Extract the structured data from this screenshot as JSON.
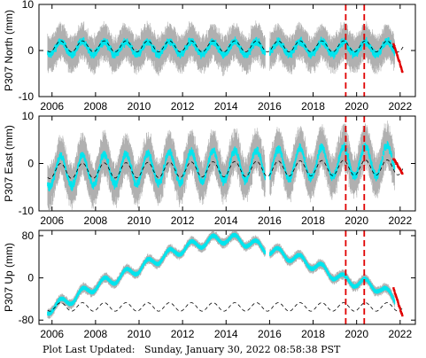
{
  "footer": {
    "label": "Plot Last Updated:",
    "timestamp": "Sunday, January 30, 2022 08:58:38 PST"
  },
  "colors": {
    "gray_error": "#b0b0b0",
    "cyan_data": "#00e5ee",
    "model_dash": "#000000",
    "event_line": "#e00000",
    "recent_points": "#e00000",
    "axes": "#000000"
  },
  "chart_data": [
    {
      "type": "scatter",
      "ylabel": "P307 North (mm)",
      "xlim": [
        2005.4,
        2022.7
      ],
      "ylim": [
        -10,
        10
      ],
      "yticks": [
        -10,
        0,
        10
      ],
      "xticks": [
        2006,
        2008,
        2010,
        2012,
        2014,
        2016,
        2018,
        2020,
        2022
      ],
      "xticklabels": [
        "2006",
        "2008",
        "2010",
        "2012",
        "2014",
        "2016",
        "2018",
        "2020",
        "2022"
      ],
      "event_lines": [
        2019.5,
        2020.35
      ],
      "gap": [
        2015.8,
        2016.0
      ],
      "series": [
        {
          "role": "daily",
          "x": [
            2005.8,
            2022.15
          ],
          "mean": 0.5,
          "trend": 0.0,
          "annual_amp": 1.4,
          "noise": 2.5,
          "spread_scale": 1.0
        },
        {
          "role": "model",
          "x": [
            2005.8,
            2022.15
          ],
          "mean": 0.9,
          "trend": 0.0,
          "annual_amp": 1.2
        },
        {
          "role": "recent",
          "x": [
            2021.7,
            2022.1
          ],
          "y": [
            1.5,
            -4.5
          ]
        }
      ]
    },
    {
      "type": "scatter",
      "ylabel": "P307 East (mm)",
      "xlim": [
        2005.4,
        2022.7
      ],
      "ylim": [
        -10,
        10
      ],
      "yticks": [
        -10,
        0,
        10
      ],
      "xticks": [
        2006,
        2008,
        2010,
        2012,
        2014,
        2016,
        2018,
        2020,
        2022
      ],
      "xticklabels": [
        "2006",
        "2008",
        "2010",
        "2012",
        "2014",
        "2016",
        "2018",
        "2020",
        "2022"
      ],
      "event_lines": [
        2019.5,
        2020.35
      ],
      "gap": [
        2015.8,
        2016.0
      ],
      "series": [
        {
          "role": "daily",
          "x": [
            2005.8,
            2022.15
          ],
          "mean": -0.5,
          "trend": 0.15,
          "annual_amp": 3.2,
          "noise": 2.6,
          "spread_scale": 1.1
        },
        {
          "role": "model",
          "x": [
            2005.8,
            2022.15
          ],
          "mean": -1.2,
          "trend": 0.05,
          "annual_amp": 1.6
        },
        {
          "role": "recent",
          "x": [
            2021.7,
            2022.1
          ],
          "y": [
            1.0,
            -2.0
          ]
        }
      ]
    },
    {
      "type": "scatter",
      "ylabel": "P307 Up (mm)",
      "xlim": [
        2005.4,
        2022.7
      ],
      "ylim": [
        -88,
        90
      ],
      "yticks": [
        -80,
        0,
        80
      ],
      "xticks": [
        2006,
        2008,
        2010,
        2012,
        2014,
        2016,
        2018,
        2020,
        2022
      ],
      "xticklabels": [
        "2006",
        "2008",
        "2010",
        "2012",
        "2014",
        "2016",
        "2018",
        "2020",
        "2022"
      ],
      "event_lines": [
        2019.5,
        2020.35
      ],
      "gap": [
        2015.8,
        2016.0
      ],
      "series": [
        {
          "role": "daily",
          "x": [
            2005.8,
            2022.15
          ],
          "annual_amp": 9,
          "noise": 4,
          "spread_scale": 1.5,
          "trend_knots": [
            [
              2005.8,
              -60
            ],
            [
              2007.0,
              -38
            ],
            [
              2008.0,
              -15
            ],
            [
              2009.0,
              0
            ],
            [
              2010.0,
              18
            ],
            [
              2011.0,
              38
            ],
            [
              2012.0,
              55
            ],
            [
              2013.0,
              68
            ],
            [
              2014.0,
              75
            ],
            [
              2015.0,
              68
            ],
            [
              2015.8,
              55
            ],
            [
              2016.0,
              52
            ],
            [
              2017.0,
              40
            ],
            [
              2018.0,
              25
            ],
            [
              2019.0,
              5
            ],
            [
              2019.5,
              -5
            ],
            [
              2020.3,
              -10
            ],
            [
              2021.0,
              -18
            ],
            [
              2021.7,
              -38
            ],
            [
              2022.15,
              -68
            ]
          ]
        },
        {
          "role": "model",
          "x": [
            2005.8,
            2022.15
          ],
          "mean": -55,
          "trend": 0.0,
          "annual_amp": 8
        },
        {
          "role": "recent",
          "x": [
            2021.7,
            2022.1
          ],
          "y": [
            -20,
            -72
          ]
        }
      ]
    }
  ]
}
